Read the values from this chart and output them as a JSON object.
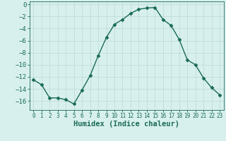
{
  "x": [
    0,
    1,
    2,
    3,
    4,
    5,
    6,
    7,
    8,
    9,
    10,
    11,
    12,
    13,
    14,
    15,
    16,
    17,
    18,
    19,
    20,
    21,
    22,
    23
  ],
  "y": [
    -12.5,
    -13.3,
    -15.5,
    -15.5,
    -15.8,
    -16.5,
    -14.2,
    -11.8,
    -8.5,
    -5.5,
    -3.3,
    -2.5,
    -1.5,
    -0.8,
    -0.6,
    -0.5,
    -2.5,
    -3.5,
    -5.8,
    -9.2,
    -10.0,
    -12.2,
    -13.8,
    -15.0
  ],
  "line_color": "#1a6b5a",
  "marker": "D",
  "marker_size": 2.5,
  "bg_color": "#d8f0ed",
  "grid_color": "#c0dcd8",
  "xlabel": "Humidex (Indice chaleur)",
  "xlim": [
    -0.5,
    23.5
  ],
  "ylim": [
    -17.5,
    0.5
  ],
  "yticks": [
    0,
    -2,
    -4,
    -6,
    -8,
    -10,
    -12,
    -14,
    -16
  ],
  "xticks": [
    0,
    1,
    2,
    3,
    4,
    5,
    6,
    7,
    8,
    9,
    10,
    11,
    12,
    13,
    14,
    15,
    16,
    17,
    18,
    19,
    20,
    21,
    22,
    23
  ],
  "tick_fontsize": 6.5,
  "label_fontsize": 7.5,
  "tick_color": "#1a6b5a",
  "axis_color": "#1a6b5a",
  "linewidth": 1.0
}
